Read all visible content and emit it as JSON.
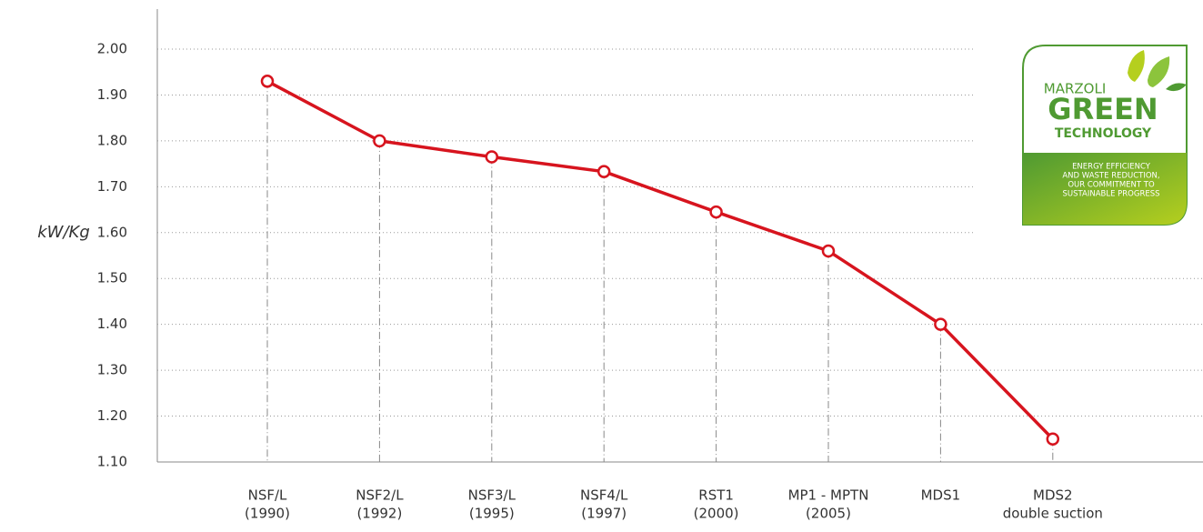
{
  "chart_data": {
    "type": "line",
    "y_label": "kW/Kg",
    "categories": [
      [
        "NSF/L",
        "(1990)"
      ],
      [
        "NSF2/L",
        "(1992)"
      ],
      [
        "NSF3/L",
        "(1995)"
      ],
      [
        "NSF4/L",
        "(1997)"
      ],
      [
        "RST1",
        "(2000)"
      ],
      [
        "MP1 - MPTN",
        "(2005)"
      ],
      [
        "MDS1"
      ],
      [
        "MDS2",
        "double suction"
      ]
    ],
    "series": [
      {
        "color": "#d7141e",
        "values": [
          1.93,
          1.8,
          1.765,
          1.733,
          1.645,
          1.56,
          1.4,
          1.15
        ]
      }
    ],
    "ylim": [
      1.1,
      2.0
    ],
    "yticks": [
      {
        "value": 1.1,
        "label": "1.10"
      },
      {
        "value": 1.2,
        "label": "1.20"
      },
      {
        "value": 1.3,
        "label": "1.30"
      },
      {
        "value": 1.4,
        "label": "1.40"
      },
      {
        "value": 1.5,
        "label": "1.50"
      },
      {
        "value": 1.6,
        "label": "1.60"
      },
      {
        "value": 1.7,
        "label": "1.70"
      },
      {
        "value": 1.8,
        "label": "1.80"
      },
      {
        "value": 1.9,
        "label": "1.90"
      },
      {
        "value": 2.0,
        "label": "2.00"
      }
    ],
    "grid": true
  },
  "logo": {
    "brand": "MARZOLI",
    "headline": "GREEN",
    "subline": "TECHNOLOGY",
    "tagline": [
      "ENERGY EFFICIENCY",
      "AND WASTE REDUCTION,",
      "OUR COMMITMENT TO",
      "SUSTAINABLE PROGRESS"
    ]
  }
}
